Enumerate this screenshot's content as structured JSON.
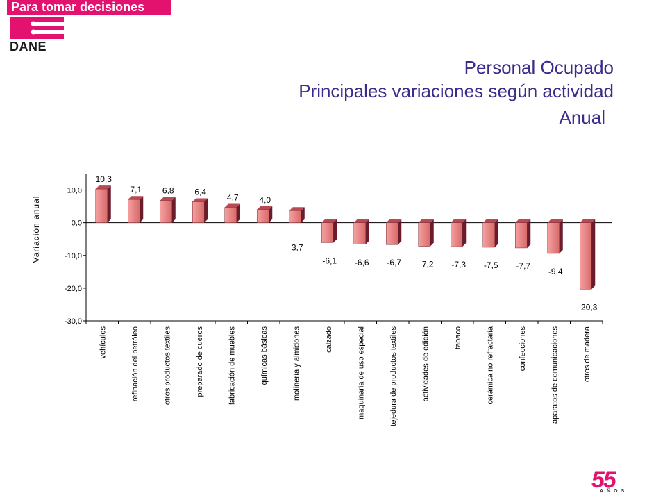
{
  "header": {
    "tagline": "Para tomar decisiones",
    "logo_text": "DANE"
  },
  "title": {
    "line1": "Personal Ocupado",
    "line2": "Principales variaciones según actividad",
    "line3": "Anual"
  },
  "footer": {
    "anniversary": "55",
    "anniversary_sub": "AÑOS"
  },
  "colors": {
    "brand": "#e3126f",
    "title": "#3a2c8a",
    "bar_light": "#f6a0a0",
    "bar_dark": "#6a1c2c"
  },
  "chart_data": {
    "type": "bar",
    "title": "",
    "xlabel": "",
    "ylabel": "Variación anual",
    "ylim": [
      -30,
      15
    ],
    "yticks": [
      "10,0",
      "0,0",
      "-10,0",
      "-20,0",
      "-30,0"
    ],
    "categories": [
      "vehículos",
      "refinación del petróleo",
      "otros productos textiles",
      "preparado de cueros",
      "fabricación de muebles",
      "químicas básicas",
      "molinería y almidones",
      "calzado",
      "maquinaria de uso especial",
      "tejedura de productos textiles",
      "actividades de edición",
      "tabaco",
      "cerámica no refractaria",
      "confecciones",
      "aparatos de comunicaciones",
      "otros de madera"
    ],
    "values": [
      10.3,
      7.1,
      6.8,
      6.4,
      4.7,
      4.0,
      3.7,
      -6.1,
      -6.6,
      -6.7,
      -7.2,
      -7.3,
      -7.5,
      -7.7,
      -9.4,
      -20.3
    ],
    "value_labels": [
      "10,3",
      "7,1",
      "6,8",
      "6,4",
      "4,7",
      "4,0",
      "3,7",
      "-6,1",
      "-6,6",
      "-6,7",
      "-7,2",
      "-7,3",
      "-7,5",
      "-7,7",
      "-9,4",
      "-20,3"
    ],
    "grid": false,
    "legend": "none"
  }
}
